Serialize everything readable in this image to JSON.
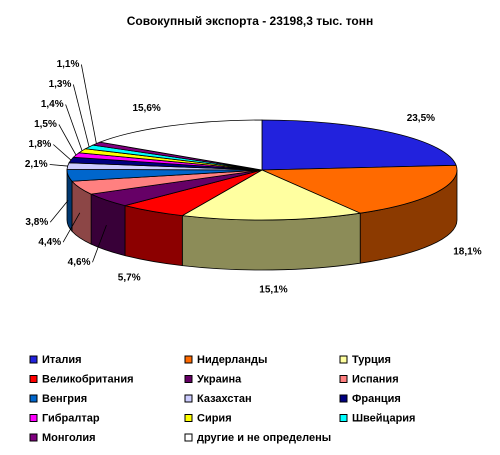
{
  "chart_data": {
    "type": "pie",
    "title": "Совокупный экспорта - 23198,3 тыс. тонн",
    "categories": [
      "Италия",
      "Нидерланды",
      "Турция",
      "Великобритания",
      "Украина",
      "Испания",
      "Венгрия",
      "Казахстан",
      "Франция",
      "Гибралтар",
      "Сирия",
      "Швейцария",
      "Монголия",
      "другие и не определены"
    ],
    "values": [
      23.5,
      18.1,
      15.1,
      5.7,
      4.6,
      4.4,
      3.8,
      2.1,
      1.8,
      1.5,
      1.4,
      1.3,
      1.1,
      15.6
    ],
    "value_labels": [
      "23,5%",
      "18,1%",
      "15,1%",
      "5,7%",
      "4,6%",
      "4,4%",
      "3,8%",
      "2,1%",
      "1,8%",
      "1,5%",
      "1,4%",
      "1,3%",
      "1,1%",
      "15,6%"
    ],
    "colors": [
      "#2222dd",
      "#ff6a00",
      "#ffffa0",
      "#ff0000",
      "#660066",
      "#ff8080",
      "#0066cc",
      "#ccccff",
      "#000080",
      "#ff00ff",
      "#ffff00",
      "#00ffff",
      "#800080",
      "#ffffff"
    ]
  }
}
